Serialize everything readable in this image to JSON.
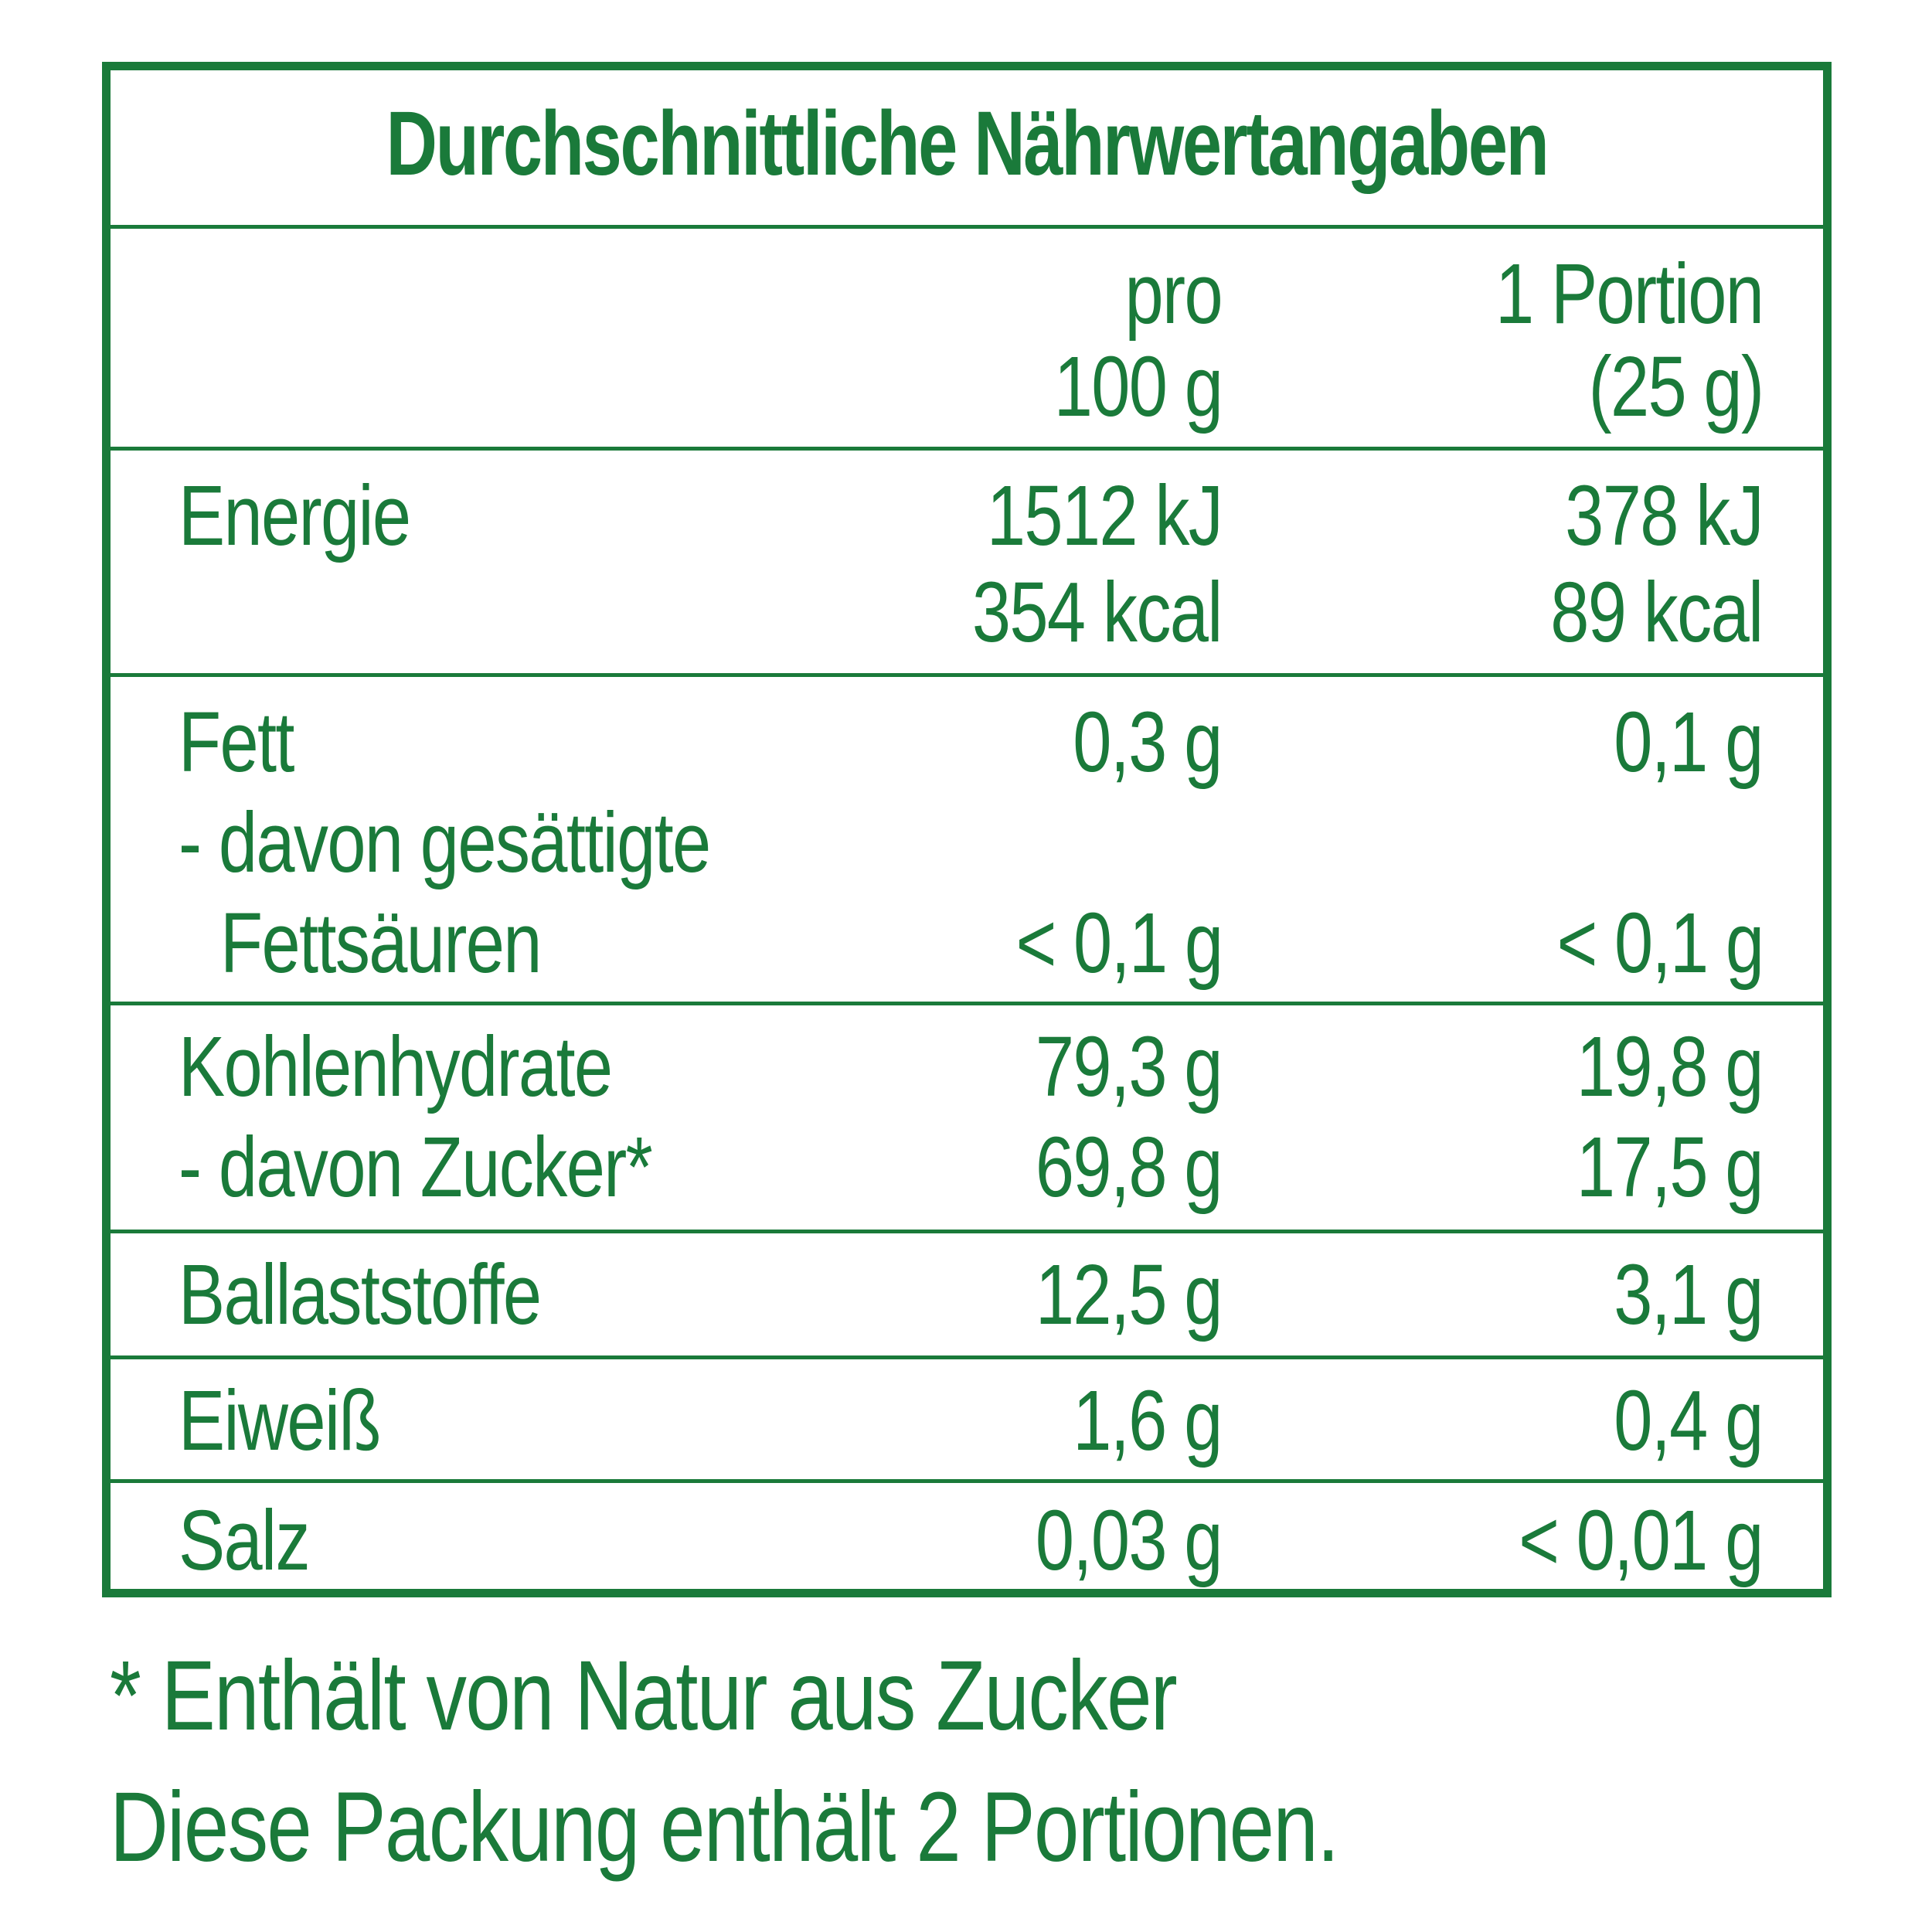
{
  "title": "Durchschnittliche Nährwertangaben",
  "header": {
    "col1_line1": "pro",
    "col1_line2": "100 g",
    "col2_line1": "1 Portion",
    "col2_line2": "(25 g)"
  },
  "rows": {
    "energie": {
      "label": "Energie",
      "c1_line1": "1512 kJ",
      "c1_line2": "354 kcal",
      "c2_line1": "378 kJ",
      "c2_line2": "89 kcal"
    },
    "fett": {
      "label": "Fett",
      "c1": "0,3 g",
      "c2": "0,1 g",
      "sub_label_line1": "- davon gesättigte",
      "sub_label_line2": "Fettsäuren",
      "sub_c1": "< 0,1 g",
      "sub_c2": "< 0,1 g"
    },
    "kohlenhydrate": {
      "label": "Kohlenhydrate",
      "c1": "79,3 g",
      "c2": "19,8 g",
      "sub_label": "- davon Zucker*",
      "sub_c1": "69,8 g",
      "sub_c2": "17,5 g"
    },
    "ballaststoffe": {
      "label": "Ballaststoffe",
      "c1": "12,5 g",
      "c2": "3,1 g"
    },
    "eiweiss": {
      "label": "Eiweiß",
      "c1": "1,6 g",
      "c2": "0,4 g"
    },
    "salz": {
      "label": "Salz",
      "c1": "0,03 g",
      "c2": "< 0,01 g"
    }
  },
  "footnotes": {
    "line1": "* Enthält von Natur aus Zucker",
    "line2": "Diese Packung enthält 2 Portionen."
  },
  "colors": {
    "accent": "#1a7a3a",
    "background": "#ffffff"
  }
}
